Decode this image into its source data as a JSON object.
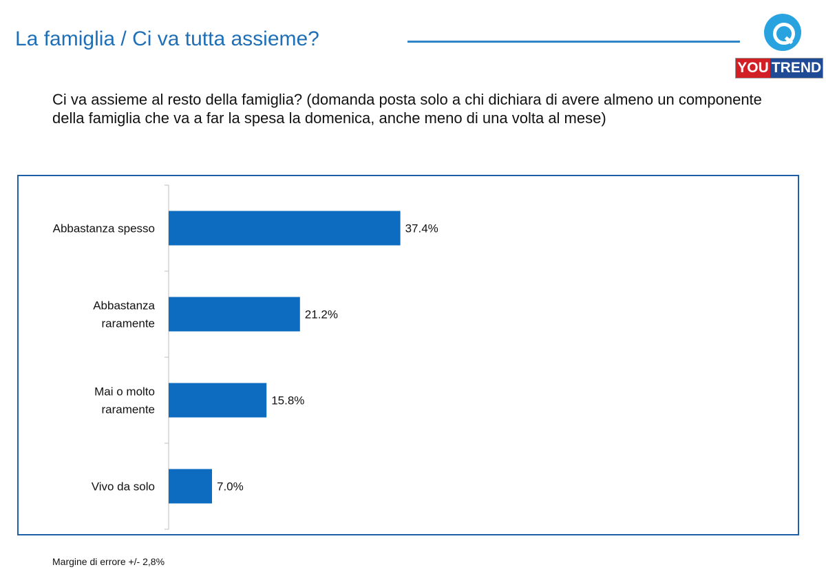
{
  "header": {
    "title": "La famiglia / Ci va tutta assieme?",
    "logo_text_you": "YOU",
    "logo_text_trend": "TREND",
    "logo_icon": "speech-bubble-q-icon"
  },
  "question": "Ci va assieme al resto della famiglia? (domanda posta solo a chi dichiara di avere almeno un componente della famiglia che va a far la spesa la domenica, anche meno di una volta al mese)",
  "footnote": "Margine di errore +/- 2,8%",
  "colors": {
    "bar": "#0e6cc0",
    "title": "#1f6fb7",
    "frame": "#1f5fa8"
  },
  "chart_data": {
    "type": "bar",
    "orientation": "horizontal",
    "categories": [
      "Abbastanza spesso",
      "Abbastanza raramente",
      "Mai o molto raramente",
      "Vivo da solo"
    ],
    "category_lines": [
      [
        "Abbastanza spesso"
      ],
      [
        "Abbastanza",
        "raramente"
      ],
      [
        "Mai o molto",
        "raramente"
      ],
      [
        "Vivo da solo"
      ]
    ],
    "values": [
      37.4,
      21.2,
      15.8,
      7.0
    ],
    "data_labels": [
      "37.4%",
      "21.2%",
      "15.8%",
      "7.0%"
    ],
    "unit": "%",
    "xlim": [
      0,
      100
    ],
    "grid": false,
    "legend": false
  }
}
